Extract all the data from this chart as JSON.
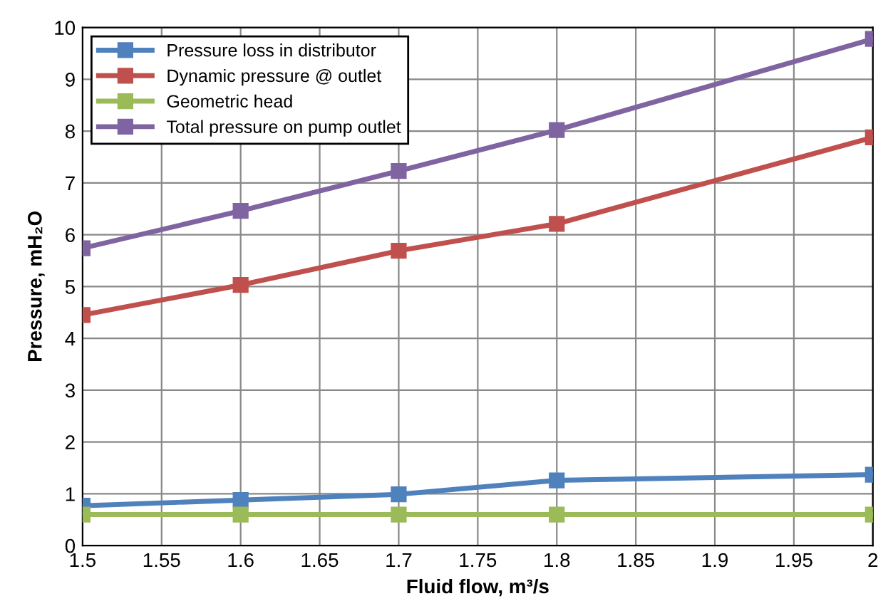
{
  "chart_data": {
    "type": "line",
    "xlabel": "Fluid flow, m³/s",
    "ylabel": "Pressure, mH₂O",
    "x": [
      1.5,
      1.6,
      1.7,
      1.8,
      2.0
    ],
    "series": [
      {
        "name": "Pressure loss in distributor",
        "color": "#4f81bd",
        "values": [
          0.77,
          0.88,
          0.99,
          1.26,
          1.37
        ]
      },
      {
        "name": "Dynamic pressure @ outlet",
        "color": "#c0504d",
        "values": [
          4.45,
          5.03,
          5.69,
          6.21,
          7.88
        ]
      },
      {
        "name": "Geometric head",
        "color": "#9bbb59",
        "values": [
          0.6,
          0.6,
          0.6,
          0.6,
          0.6
        ]
      },
      {
        "name": "Total pressure on pump outlet",
        "color": "#8064a2",
        "values": [
          5.74,
          6.46,
          7.23,
          8.02,
          9.78
        ]
      }
    ],
    "xlim": [
      1.5,
      2
    ],
    "xticks": [
      1.5,
      1.55,
      1.6,
      1.65,
      1.7,
      1.75,
      1.8,
      1.85,
      1.9,
      1.95,
      2
    ],
    "ylim": [
      0,
      10
    ],
    "yticks": [
      0,
      1,
      2,
      3,
      4,
      5,
      6,
      7,
      8,
      9,
      10
    ],
    "grid": true,
    "legend": "top left",
    "marker": "square",
    "line_style": "solid"
  }
}
